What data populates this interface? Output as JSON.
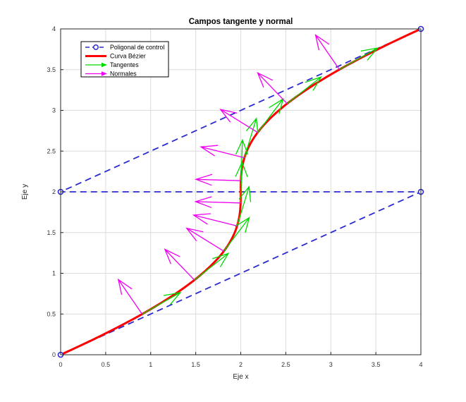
{
  "figure": {
    "title": "Campos tangente y normal",
    "xlabel": "Eje x",
    "ylabel": "Eje y"
  },
  "axes": {
    "xlim": [
      0,
      4
    ],
    "ylim": [
      0,
      4
    ],
    "xticks": [
      0,
      0.5,
      1,
      1.5,
      2,
      2.5,
      3,
      3.5,
      4
    ],
    "yticks": [
      0,
      0.5,
      1,
      1.5,
      2,
      2.5,
      3,
      3.5,
      4
    ],
    "xtick_labels": [
      "0",
      "0.5",
      "1",
      "1.5",
      "2",
      "2.5",
      "3",
      "3.5",
      "4"
    ],
    "ytick_labels": [
      "0",
      "0.5",
      "1",
      "1.5",
      "2",
      "2.5",
      "3",
      "3.5",
      "4"
    ],
    "grid": true
  },
  "colors": {
    "control_polygon": "#2a2ad0",
    "bezier_curve": "#ff0000",
    "tangents": "#00d900",
    "normals": "#f000f0",
    "grid": "#dcdcdc",
    "axes_box": "#262626",
    "background": "#ffffff"
  },
  "legend": {
    "entries": [
      {
        "label": "Poligonal de control",
        "color": "#2a2ad0",
        "glyph": "dashed-line-circle-marker"
      },
      {
        "label": "Curva Bézier",
        "color": "#ff0000",
        "glyph": "thick-line"
      },
      {
        "label": "Tangentes",
        "color": "#00d900",
        "glyph": "arrow"
      },
      {
        "label": "Normales",
        "color": "#f000f0",
        "glyph": "arrow"
      }
    ],
    "position": "top-left"
  },
  "chart_data": {
    "type": "line",
    "title": "Campos tangente y normal",
    "xlabel": "Eje x",
    "ylabel": "Eje y",
    "xlim": [
      0,
      4
    ],
    "ylim": [
      0,
      4
    ],
    "grid": true,
    "legend_position": "top-left",
    "series": [
      {
        "name": "Poligonal de control",
        "style": "dashed",
        "marker": "circle",
        "color": "#2a2ad0",
        "points": [
          [
            0,
            0
          ],
          [
            4,
            2
          ],
          [
            0,
            2
          ],
          [
            4,
            4
          ]
        ]
      },
      {
        "name": "Curva Bézier",
        "style": "solid",
        "line_width": 3,
        "color": "#ff0000",
        "curve": "cubic-bezier",
        "control_points": [
          [
            0,
            0
          ],
          [
            4,
            2
          ],
          [
            0,
            2
          ],
          [
            4,
            4
          ]
        ]
      },
      {
        "name": "Tangentes",
        "type": "quiver",
        "color": "#00d900",
        "scale": 0.5,
        "t": [
          0.0909,
          0.1818,
          0.2727,
          0.3636,
          0.4545,
          0.5455,
          0.6364,
          0.7273,
          0.8182,
          0.9091
        ],
        "points": [
          [
            0.905,
            0.499
          ],
          [
            1.485,
            0.917
          ],
          [
            1.812,
            1.271
          ],
          [
            1.959,
            1.581
          ],
          [
            1.998,
            1.863
          ],
          [
            2.002,
            2.137
          ],
          [
            2.04,
            2.419
          ],
          [
            2.188,
            2.729
          ],
          [
            2.515,
            3.083
          ],
          [
            3.095,
            3.501
          ]
        ],
        "directions": [
          [
            0.849,
            0.529
          ],
          [
            0.755,
            0.655
          ],
          [
            0.565,
            0.825
          ],
          [
            0.267,
            0.964
          ],
          [
            0.033,
            0.999
          ],
          [
            0.033,
            0.999
          ],
          [
            0.267,
            0.964
          ],
          [
            0.565,
            0.825
          ],
          [
            0.755,
            0.655
          ],
          [
            0.849,
            0.529
          ]
        ]
      },
      {
        "name": "Normales",
        "type": "quiver",
        "color": "#f000f0",
        "scale": 0.5,
        "t": [
          0.0909,
          0.1818,
          0.2727,
          0.3636,
          0.4545,
          0.5455,
          0.6364,
          0.7273,
          0.8182,
          0.9091
        ],
        "points": [
          [
            0.905,
            0.499
          ],
          [
            1.485,
            0.917
          ],
          [
            1.812,
            1.271
          ],
          [
            1.959,
            1.581
          ],
          [
            1.998,
            1.863
          ],
          [
            2.002,
            2.137
          ],
          [
            2.04,
            2.419
          ],
          [
            2.188,
            2.729
          ],
          [
            2.515,
            3.083
          ],
          [
            3.095,
            3.501
          ]
        ],
        "directions": [
          [
            -0.529,
            0.849
          ],
          [
            -0.655,
            0.755
          ],
          [
            -0.825,
            0.565
          ],
          [
            -0.964,
            0.267
          ],
          [
            -0.999,
            0.033
          ],
          [
            -0.999,
            0.033
          ],
          [
            -0.964,
            0.267
          ],
          [
            -0.825,
            0.565
          ],
          [
            -0.655,
            0.755
          ],
          [
            -0.529,
            0.849
          ]
        ]
      }
    ]
  }
}
